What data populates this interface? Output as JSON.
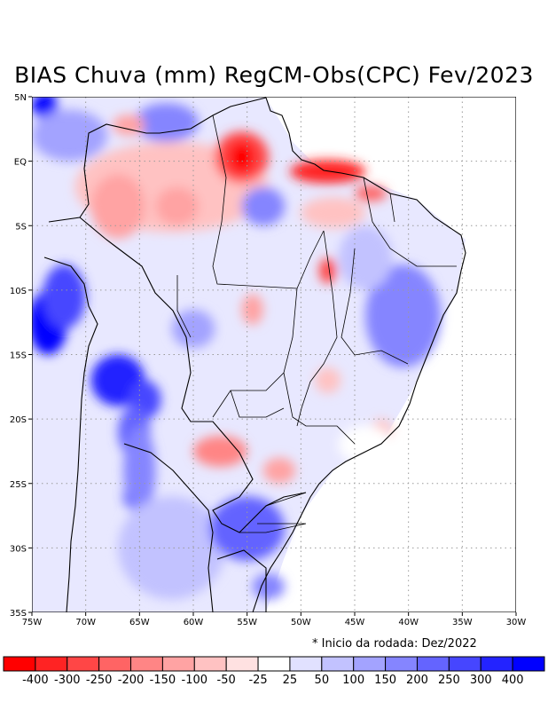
{
  "title": "BIAS Chuva (mm) RegCM-Obs(CPC) Fev/2023",
  "note": "* Inicio da rodada: Dez/2022",
  "map": {
    "lon_range": [
      -75,
      -30
    ],
    "lat_range": [
      -35,
      5
    ],
    "lon_ticks": [
      {
        "value": -75,
        "label": "75W"
      },
      {
        "value": -70,
        "label": "70W"
      },
      {
        "value": -65,
        "label": "65W"
      },
      {
        "value": -60,
        "label": "60W"
      },
      {
        "value": -55,
        "label": "55W"
      },
      {
        "value": -50,
        "label": "50W"
      },
      {
        "value": -45,
        "label": "45W"
      },
      {
        "value": -40,
        "label": "40W"
      },
      {
        "value": -35,
        "label": "35W"
      },
      {
        "value": -30,
        "label": "30W"
      }
    ],
    "lat_ticks": [
      {
        "value": 5,
        "label": "5N"
      },
      {
        "value": 0,
        "label": "EQ"
      },
      {
        "value": -5,
        "label": "5S"
      },
      {
        "value": -10,
        "label": "10S"
      },
      {
        "value": -15,
        "label": "15S"
      },
      {
        "value": -20,
        "label": "20S"
      },
      {
        "value": -25,
        "label": "25S"
      },
      {
        "value": -30,
        "label": "30S"
      },
      {
        "value": -35,
        "label": "35S"
      }
    ],
    "grid": true
  },
  "colorbar": {
    "colors": [
      "#ff0000",
      "#ff2323",
      "#ff4646",
      "#ff6464",
      "#ff8585",
      "#ffa3a3",
      "#ffc2c2",
      "#ffe1e1",
      "#ffffff",
      "#e1e1ff",
      "#c2c2ff",
      "#a3a3ff",
      "#8585ff",
      "#6464ff",
      "#4646ff",
      "#2323ff",
      "#0000ff"
    ],
    "labels": [
      "-400",
      "-300",
      "-250",
      "-200",
      "-150",
      "-100",
      "-50",
      "-25",
      "25",
      "50",
      "100",
      "150",
      "200",
      "250",
      "300",
      "400"
    ]
  },
  "bias_blobs": [
    {
      "lon": -73.8,
      "lat": 4.3,
      "rx": 1.2,
      "ry": 1.0,
      "level": 16
    },
    {
      "lon": -71.5,
      "lat": 2.0,
      "rx": 3.5,
      "ry": 2.0,
      "level": 11
    },
    {
      "lon": -62.5,
      "lat": 3.0,
      "rx": 3.0,
      "ry": 1.5,
      "level": 12
    },
    {
      "lon": -66.0,
      "lat": 2.8,
      "rx": 1.5,
      "ry": 0.8,
      "level": 5
    },
    {
      "lon": -62.0,
      "lat": -2.0,
      "rx": 9.0,
      "ry": 3.5,
      "level": 6
    },
    {
      "lon": -67.0,
      "lat": -3.5,
      "rx": 2.5,
      "ry": 2.5,
      "level": 5
    },
    {
      "lon": -61.5,
      "lat": -3.5,
      "rx": 2.0,
      "ry": 1.5,
      "level": 5
    },
    {
      "lon": -55.5,
      "lat": 0.3,
      "rx": 2.5,
      "ry": 2.0,
      "level": 2
    },
    {
      "lon": -55.5,
      "lat": 0.3,
      "rx": 1.2,
      "ry": 1.2,
      "level": 0
    },
    {
      "lon": -47.5,
      "lat": -0.8,
      "rx": 3.5,
      "ry": 0.9,
      "level": 1
    },
    {
      "lon": -43.5,
      "lat": -2.5,
      "rx": 1.5,
      "ry": 0.6,
      "level": 3
    },
    {
      "lon": -53.5,
      "lat": -3.5,
      "rx": 2.0,
      "ry": 1.5,
      "level": 12
    },
    {
      "lon": -47.0,
      "lat": -4.0,
      "rx": 3.0,
      "ry": 1.2,
      "level": 6
    },
    {
      "lon": -47.5,
      "lat": -8.5,
      "rx": 0.8,
      "ry": 1.0,
      "level": 2
    },
    {
      "lon": -40.5,
      "lat": -12.0,
      "rx": 3.5,
      "ry": 4.0,
      "level": 12
    },
    {
      "lon": -44.0,
      "lat": -7.5,
      "rx": 2.5,
      "ry": 2.5,
      "level": 10
    },
    {
      "lon": -73.5,
      "lat": -12.5,
      "rx": 1.8,
      "ry": 2.5,
      "level": 16
    },
    {
      "lon": -72.0,
      "lat": -10.5,
      "rx": 2.0,
      "ry": 2.5,
      "level": 14
    },
    {
      "lon": -67.0,
      "lat": -17.0,
      "rx": 2.5,
      "ry": 2.0,
      "level": 15
    },
    {
      "lon": -64.5,
      "lat": -18.5,
      "rx": 1.5,
      "ry": 1.5,
      "level": 14
    },
    {
      "lon": -65.5,
      "lat": -21.0,
      "rx": 1.5,
      "ry": 2.0,
      "level": 13
    },
    {
      "lon": -65.5,
      "lat": -26.0,
      "rx": 1.0,
      "ry": 1.0,
      "level": 15
    },
    {
      "lon": -65.0,
      "lat": -24.0,
      "rx": 1.5,
      "ry": 3.5,
      "level": 12
    },
    {
      "lon": -62.0,
      "lat": -30.0,
      "rx": 5.0,
      "ry": 4.0,
      "level": 10
    },
    {
      "lon": -55.0,
      "lat": -28.5,
      "rx": 3.5,
      "ry": 2.5,
      "level": 13
    },
    {
      "lon": -57.5,
      "lat": -22.5,
      "rx": 2.5,
      "ry": 1.2,
      "level": 4
    },
    {
      "lon": -54.5,
      "lat": -11.5,
      "rx": 1.0,
      "ry": 1.2,
      "level": 5
    },
    {
      "lon": -60.0,
      "lat": -13.0,
      "rx": 2.0,
      "ry": 1.5,
      "level": 11
    },
    {
      "lon": -47.5,
      "lat": -17.0,
      "rx": 1.2,
      "ry": 1.0,
      "level": 6
    },
    {
      "lon": -42.5,
      "lat": -21.0,
      "rx": 1.0,
      "ry": 1.0,
      "level": 6
    },
    {
      "lon": -52.0,
      "lat": -24.0,
      "rx": 1.5,
      "ry": 1.0,
      "level": 5
    },
    {
      "lon": -44.0,
      "lat": -22.0,
      "rx": 2.5,
      "ry": 1.5,
      "level": 8
    },
    {
      "lon": -53.0,
      "lat": -33.0,
      "rx": 1.5,
      "ry": 1.0,
      "level": 12
    }
  ]
}
